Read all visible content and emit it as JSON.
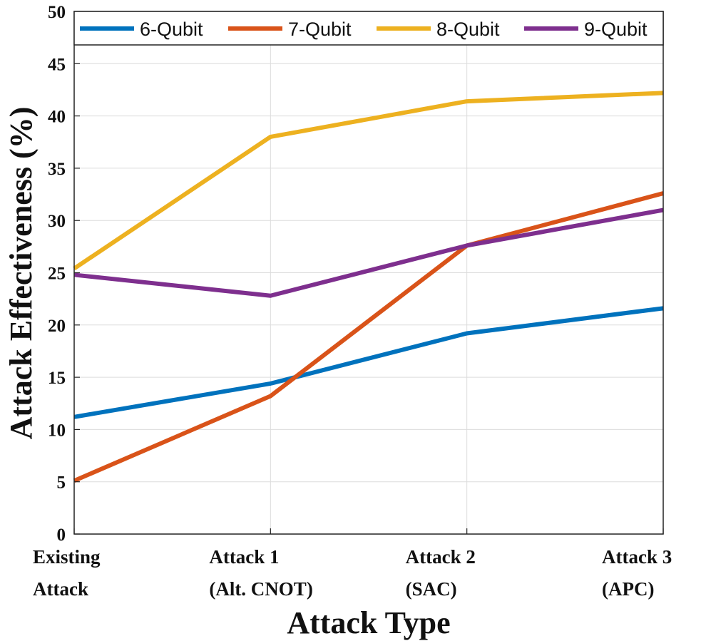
{
  "chart_data": {
    "type": "line",
    "title": "",
    "xlabel": "Attack Type",
    "ylabel": "Attack Effectiveness (%)",
    "ylim": [
      0,
      50
    ],
    "yticks": [
      0,
      5,
      10,
      15,
      20,
      25,
      30,
      35,
      40,
      45,
      50
    ],
    "grid": true,
    "legend_position": "top",
    "categories": [
      [
        "Existing",
        "Attack"
      ],
      [
        "Attack 1",
        "(Alt. CNOT)"
      ],
      [
        "Attack 2",
        "(SAC)"
      ],
      [
        "Attack 3",
        "(APC)"
      ]
    ],
    "series": [
      {
        "name": "6-Qubit",
        "color": "#0072BD",
        "values": [
          11.2,
          14.4,
          19.2,
          21.6
        ]
      },
      {
        "name": "7-Qubit",
        "color": "#D95319",
        "values": [
          5.1,
          13.2,
          27.6,
          32.6
        ]
      },
      {
        "name": "8-Qubit",
        "color": "#EDB120",
        "values": [
          25.4,
          38.0,
          41.4,
          42.2
        ]
      },
      {
        "name": "9-Qubit",
        "color": "#7E2F8E",
        "values": [
          24.8,
          22.8,
          27.6,
          31.0
        ]
      }
    ]
  }
}
